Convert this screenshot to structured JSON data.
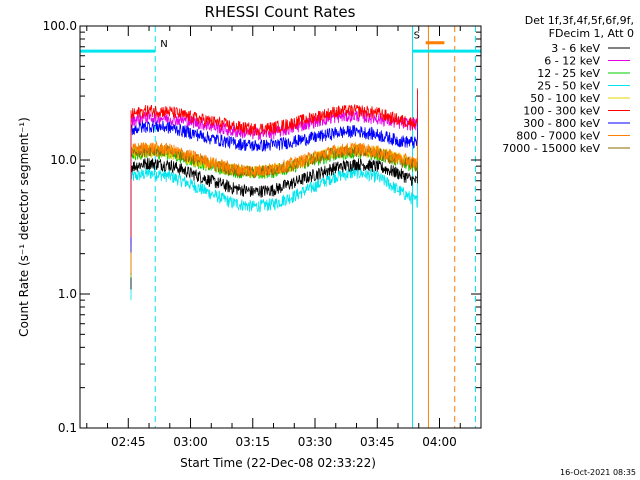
{
  "chart_data": {
    "type": "line",
    "title": "RHESSI Count Rates",
    "xlabel": "Start Time (22-Dec-08 02:33:22)",
    "ylabel": "Count Rate (s⁻¹ detector segment⁻¹)",
    "y_scale": "log",
    "ylim": [
      0.1,
      100.0
    ],
    "xlim": [
      "02:33:22",
      "04:10:00"
    ],
    "x_ticks": [
      "02:45",
      "03:00",
      "03:15",
      "03:30",
      "03:45",
      "04:00"
    ],
    "y_ticks": [
      "0.1",
      "1.0",
      "10.0",
      "100.0"
    ],
    "legend_position": "right",
    "legend_header": [
      "Det 1f,3f,4f,5f,6f,9f,",
      "FDecim 1, Att 0"
    ],
    "timestamp": "16-Oct-2021 08:35",
    "flags": [
      {
        "label": "N",
        "color": "#00e5ee",
        "start": "02:33:22",
        "end": "02:51:30",
        "y": 65
      },
      {
        "label": "S",
        "color": "#ff7f00",
        "start": "03:56:40",
        "end": "04:01:10",
        "y": 75
      },
      {
        "label": "",
        "color": "#00e5ee",
        "start": "03:53:30",
        "end": "04:10:00",
        "y": 65
      }
    ],
    "vertical_lines": [
      {
        "time": "02:33:22",
        "color": "#00e5ee",
        "style": "solid"
      },
      {
        "time": "02:51:30",
        "color": "#00e5ee",
        "style": "dashed"
      },
      {
        "time": "03:53:30",
        "color": "#00e5ee",
        "style": "solid"
      },
      {
        "time": "03:57:20",
        "color": "#ff7f00",
        "style": "solid"
      },
      {
        "time": "04:03:40",
        "color": "#ff7f00",
        "style": "dashed"
      },
      {
        "time": "04:08:40",
        "color": "#00e5ee",
        "style": "dashed"
      }
    ],
    "data_window": [
      "02:45:40",
      "03:54:40"
    ],
    "x": [
      "02:46",
      "02:50",
      "02:55",
      "03:00",
      "03:05",
      "03:10",
      "03:15",
      "03:20",
      "03:25",
      "03:30",
      "03:35",
      "03:40",
      "03:45",
      "03:50",
      "03:54"
    ],
    "series": [
      {
        "name": "3 - 6 keV",
        "color": "#000000",
        "values": [
          9.0,
          9.5,
          9.2,
          8.0,
          7.0,
          6.2,
          5.8,
          6.0,
          6.8,
          7.8,
          8.8,
          9.4,
          9.0,
          8.0,
          7.0
        ]
      },
      {
        "name": "6 - 12 keV",
        "color": "#e600e6",
        "values": [
          20.0,
          21.0,
          20.5,
          19.5,
          18.0,
          16.5,
          15.8,
          16.0,
          17.5,
          19.5,
          21.0,
          21.5,
          20.5,
          19.0,
          18.5
        ]
      },
      {
        "name": "12 - 25 keV",
        "color": "#00cc00",
        "values": [
          11.0,
          11.5,
          11.2,
          10.0,
          9.0,
          8.3,
          8.0,
          8.2,
          9.0,
          10.0,
          11.0,
          11.5,
          11.0,
          10.0,
          9.0
        ]
      },
      {
        "name": "25 - 50 keV",
        "color": "#00e5ee",
        "values": [
          7.5,
          8.0,
          7.6,
          6.6,
          5.6,
          4.8,
          4.5,
          4.7,
          5.4,
          6.4,
          7.6,
          8.1,
          7.5,
          6.0,
          5.0
        ]
      },
      {
        "name": "50 - 100 keV",
        "color": "#e6d400",
        "values": [
          11.2,
          11.8,
          11.4,
          10.2,
          9.2,
          8.5,
          8.1,
          8.4,
          9.2,
          10.4,
          11.4,
          11.9,
          11.3,
          10.2,
          9.3
        ]
      },
      {
        "name": "100 - 300 keV",
        "color": "#ff0000",
        "values": [
          22.0,
          23.5,
          23.0,
          21.0,
          19.5,
          18.0,
          17.0,
          17.5,
          19.0,
          21.0,
          23.0,
          23.5,
          22.5,
          20.0,
          19.0
        ]
      },
      {
        "name": "300 - 800 keV",
        "color": "#0000ff",
        "values": [
          17.0,
          18.0,
          17.5,
          16.0,
          14.5,
          13.5,
          12.8,
          13.0,
          13.8,
          14.8,
          16.0,
          16.5,
          15.5,
          14.0,
          13.5
        ]
      },
      {
        "name": "800 - 7000 keV",
        "color": "#ff7f00",
        "values": [
          12.0,
          12.5,
          12.0,
          10.8,
          9.6,
          8.7,
          8.3,
          8.6,
          9.5,
          10.7,
          11.8,
          12.3,
          11.6,
          10.4,
          9.6
        ]
      },
      {
        "name": "7000 - 15000 keV",
        "color": "#8b6a00",
        "values": [
          11.5,
          12.0,
          11.6,
          10.4,
          9.3,
          8.5,
          8.1,
          8.4,
          9.2,
          10.3,
          11.4,
          11.8,
          11.2,
          10.0,
          9.2
        ]
      }
    ]
  }
}
